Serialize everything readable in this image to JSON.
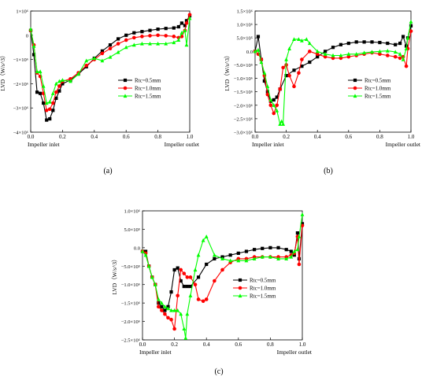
{
  "figure": {
    "panels": [
      {
        "label": "(a)"
      },
      {
        "label": "(b)"
      },
      {
        "label": "(c)"
      }
    ]
  },
  "series_styles": [
    {
      "name": "Rtc=0.5mm",
      "color": "#000000",
      "marker": "square"
    },
    {
      "name": "Rtc=1.0mm",
      "color": "#ff0000",
      "marker": "circle"
    },
    {
      "name": "Rtc=1.5mm",
      "color": "#00ff00",
      "marker": "triangle"
    }
  ],
  "chart_data": [
    {
      "type": "line",
      "panel": "(a)",
      "ylabel": "LVD（W/s^3）",
      "xlabel_left": "Impeller inlet",
      "xlabel_right": "Impeller outlet",
      "xlim": [
        0,
        1.0
      ],
      "ylim": [
        -4000000,
        1000000
      ],
      "xticks": [
        0.0,
        0.2,
        0.4,
        0.6,
        0.8,
        1.0
      ],
      "xtick_labels": [
        "0.0",
        "0.2",
        "0.4",
        "0.6",
        "0.8",
        "1.0"
      ],
      "yticks": [
        1000000,
        0,
        -1000000,
        -2000000,
        -3000000,
        -4000000
      ],
      "ytick_labels": [
        "1×10⁶",
        "0",
        "−1×10⁶",
        "−2×10⁶",
        "−3×10⁶",
        "−4×10⁶"
      ],
      "legend_position": "center-right",
      "series": [
        {
          "name": "Rtc=0.5mm",
          "x": [
            0.0,
            0.02,
            0.04,
            0.06,
            0.08,
            0.1,
            0.12,
            0.14,
            0.16,
            0.18,
            0.2,
            0.25,
            0.3,
            0.35,
            0.4,
            0.45,
            0.5,
            0.55,
            0.6,
            0.65,
            0.7,
            0.75,
            0.8,
            0.85,
            0.9,
            0.93,
            0.95,
            0.97,
            0.98,
            1.0
          ],
          "y": [
            200000,
            -800000,
            -2350000,
            -2400000,
            -2800000,
            -3500000,
            -3450000,
            -3100000,
            -2600000,
            -2300000,
            -2000000,
            -1850000,
            -1600000,
            -1300000,
            -950000,
            -650000,
            -400000,
            -150000,
            0,
            100000,
            150000,
            200000,
            250000,
            280000,
            300000,
            350000,
            500000,
            400000,
            600000,
            800000
          ]
        },
        {
          "name": "Rtc=1.0mm",
          "x": [
            0.0,
            0.02,
            0.04,
            0.06,
            0.08,
            0.1,
            0.12,
            0.14,
            0.16,
            0.18,
            0.2,
            0.25,
            0.3,
            0.35,
            0.4,
            0.45,
            0.5,
            0.55,
            0.6,
            0.65,
            0.7,
            0.75,
            0.8,
            0.85,
            0.9,
            0.93,
            0.95,
            0.97,
            0.98,
            1.0
          ],
          "y": [
            200000,
            -400000,
            -1550000,
            -1700000,
            -2400000,
            -3100000,
            -3050000,
            -2800000,
            -2350000,
            -2100000,
            -1900000,
            -1800000,
            -1550000,
            -1250000,
            -1000000,
            -750000,
            -550000,
            -350000,
            -200000,
            -100000,
            -50000,
            -20000,
            0,
            -20000,
            -50000,
            -100000,
            -50000,
            200000,
            500000,
            850000
          ]
        },
        {
          "name": "Rtc=1.5mm",
          "x": [
            0.0,
            0.02,
            0.04,
            0.06,
            0.08,
            0.1,
            0.12,
            0.14,
            0.16,
            0.18,
            0.2,
            0.25,
            0.3,
            0.35,
            0.4,
            0.45,
            0.5,
            0.55,
            0.6,
            0.65,
            0.7,
            0.75,
            0.8,
            0.85,
            0.9,
            0.93,
            0.95,
            0.97,
            0.98,
            1.0
          ],
          "y": [
            250000,
            -450000,
            -1500000,
            -1500000,
            -2100000,
            -2800000,
            -2750000,
            -2400000,
            -2000000,
            -1900000,
            -1850000,
            -1900000,
            -1600000,
            -1050000,
            -950000,
            -1050000,
            -900000,
            -700000,
            -500000,
            -400000,
            -350000,
            -350000,
            -350000,
            -350000,
            -300000,
            -200000,
            100000,
            200000,
            -400000,
            700000
          ]
        }
      ]
    },
    {
      "type": "line",
      "panel": "(b)",
      "ylabel": "LVD（W/s^3）",
      "xlabel_left": "Impeller inlet",
      "xlabel_right": "Impeller outlet",
      "xlim": [
        0,
        1.0
      ],
      "ylim": [
        -3000000,
        1500000
      ],
      "xticks": [
        0.0,
        0.2,
        0.4,
        0.6,
        0.8,
        1.0
      ],
      "xtick_labels": [
        "0.0",
        "0.2",
        "0.4",
        "0.6",
        "0.8",
        "1.0"
      ],
      "yticks": [
        1500000,
        1000000,
        500000,
        0,
        -500000,
        -1000000,
        -1500000,
        -2000000,
        -2500000,
        -3000000
      ],
      "ytick_labels": [
        "1.5×10⁶",
        "1.0×10⁶",
        "5.0×10⁵",
        "0.0",
        "−5.0×10⁵",
        "−1.0×10⁶",
        "−1.5×10⁶",
        "−2.0×10⁶",
        "−2.5×10⁶",
        "−3.0×10⁶"
      ],
      "legend_position": "center-right",
      "series": [
        {
          "name": "Rtc=0.5mm",
          "x": [
            0.0,
            0.02,
            0.04,
            0.06,
            0.08,
            0.1,
            0.12,
            0.14,
            0.16,
            0.2,
            0.25,
            0.3,
            0.35,
            0.4,
            0.45,
            0.5,
            0.55,
            0.6,
            0.65,
            0.7,
            0.75,
            0.8,
            0.85,
            0.9,
            0.93,
            0.95,
            0.97,
            0.98,
            1.0
          ],
          "y": [
            0,
            550000,
            -300000,
            -1100000,
            -1500000,
            -1850000,
            -1800000,
            -1700000,
            -1400000,
            -900000,
            -700000,
            -550000,
            -400000,
            -200000,
            0,
            150000,
            250000,
            300000,
            350000,
            350000,
            350000,
            330000,
            300000,
            250000,
            300000,
            550000,
            200000,
            500000,
            950000
          ]
        },
        {
          "name": "Rtc=1.0mm",
          "x": [
            0.0,
            0.02,
            0.04,
            0.06,
            0.08,
            0.1,
            0.12,
            0.14,
            0.16,
            0.18,
            0.2,
            0.22,
            0.25,
            0.28,
            0.3,
            0.35,
            0.4,
            0.45,
            0.5,
            0.55,
            0.6,
            0.65,
            0.7,
            0.75,
            0.8,
            0.85,
            0.9,
            0.93,
            0.95,
            0.97,
            0.98,
            1.0
          ],
          "y": [
            0,
            -100000,
            -300000,
            -900000,
            -1600000,
            -2000000,
            -2300000,
            -2000000,
            -1400000,
            -600000,
            -500000,
            -900000,
            -1300000,
            -800000,
            -300000,
            0,
            -100000,
            -200000,
            -250000,
            -250000,
            -200000,
            -150000,
            -100000,
            -50000,
            -100000,
            -150000,
            -200000,
            -250000,
            -200000,
            -550000,
            100000,
            750000
          ]
        },
        {
          "name": "Rtc=1.5mm",
          "x": [
            0.0,
            0.02,
            0.04,
            0.06,
            0.08,
            0.1,
            0.12,
            0.14,
            0.16,
            0.17,
            0.18,
            0.2,
            0.22,
            0.25,
            0.28,
            0.3,
            0.33,
            0.35,
            0.4,
            0.45,
            0.5,
            0.55,
            0.6,
            0.65,
            0.7,
            0.75,
            0.8,
            0.85,
            0.9,
            0.93,
            0.95,
            0.97,
            0.98,
            1.0
          ],
          "y": [
            0,
            50000,
            -400000,
            -800000,
            -1300000,
            -1800000,
            -2000000,
            -2200000,
            -2700000,
            -2600000,
            -2700000,
            -300000,
            100000,
            450000,
            450000,
            400000,
            450000,
            300000,
            0,
            -100000,
            -150000,
            -150000,
            -100000,
            -100000,
            -50000,
            -20000,
            0,
            20000,
            -20000,
            -100000,
            -300000,
            100000,
            500000,
            1100000
          ]
        }
      ]
    },
    {
      "type": "line",
      "panel": "(c)",
      "ylabel": "LVD（W/s^3）",
      "xlabel_left": "Impeller inlet",
      "xlabel_right": "Impeller outlet",
      "xlim": [
        0,
        1.0
      ],
      "ylim": [
        -2500000,
        1000000
      ],
      "xticks": [
        0.0,
        0.2,
        0.4,
        0.6,
        0.8,
        1.0
      ],
      "xtick_labels": [
        "0.0",
        "0.2",
        "0.4",
        "0.6",
        "0.8",
        "1.0"
      ],
      "yticks": [
        1000000,
        500000,
        0,
        -500000,
        -1000000,
        -1500000,
        -2000000,
        -2500000
      ],
      "ytick_labels": [
        "1.0×10⁶",
        "5.0×10⁵",
        "0.0",
        "−5.0×10⁵",
        "−1.0×10⁶",
        "−1.5×10⁶",
        "−2.0×10⁶",
        "−2.5×10⁶"
      ],
      "legend_position": "center-right",
      "series": [
        {
          "name": "Rtc=0.5mm",
          "x": [
            0.0,
            0.02,
            0.04,
            0.06,
            0.08,
            0.1,
            0.12,
            0.14,
            0.16,
            0.18,
            0.2,
            0.22,
            0.24,
            0.26,
            0.28,
            0.3,
            0.35,
            0.4,
            0.45,
            0.5,
            0.55,
            0.6,
            0.65,
            0.7,
            0.75,
            0.8,
            0.85,
            0.9,
            0.93,
            0.95,
            0.97,
            0.98,
            1.0
          ],
          "y": [
            -100000,
            -100000,
            -500000,
            -800000,
            -1000000,
            -1500000,
            -1600000,
            -1700000,
            -1600000,
            -1200000,
            -600000,
            -550000,
            -900000,
            -1050000,
            -1050000,
            -1050000,
            -800000,
            -450000,
            -300000,
            -250000,
            -200000,
            -150000,
            -100000,
            -50000,
            -20000,
            0,
            0,
            -50000,
            -100000,
            -200000,
            400000,
            -300000,
            650000
          ]
        },
        {
          "name": "Rtc=1.0mm",
          "x": [
            0.0,
            0.02,
            0.04,
            0.06,
            0.08,
            0.1,
            0.12,
            0.14,
            0.16,
            0.18,
            0.2,
            0.22,
            0.24,
            0.26,
            0.28,
            0.3,
            0.33,
            0.35,
            0.38,
            0.4,
            0.45,
            0.5,
            0.55,
            0.6,
            0.65,
            0.7,
            0.75,
            0.8,
            0.85,
            0.9,
            0.93,
            0.95,
            0.97,
            0.98,
            1.0
          ],
          "y": [
            -100000,
            -150000,
            -500000,
            -800000,
            -1000000,
            -1600000,
            -1700000,
            -1800000,
            -1900000,
            -1950000,
            -2200000,
            -1300000,
            -600000,
            -700000,
            -800000,
            -800000,
            -1000000,
            -1400000,
            -1450000,
            -1400000,
            -900000,
            -600000,
            -400000,
            -300000,
            -300000,
            -250000,
            -250000,
            -250000,
            -250000,
            -250000,
            -200000,
            -150000,
            300000,
            -450000,
            600000
          ]
        },
        {
          "name": "Rtc=1.5mm",
          "x": [
            0.0,
            0.02,
            0.04,
            0.06,
            0.08,
            0.1,
            0.12,
            0.14,
            0.16,
            0.18,
            0.2,
            0.22,
            0.24,
            0.26,
            0.27,
            0.28,
            0.3,
            0.33,
            0.35,
            0.38,
            0.4,
            0.45,
            0.5,
            0.55,
            0.6,
            0.65,
            0.7,
            0.75,
            0.8,
            0.85,
            0.9,
            0.93,
            0.95,
            0.97,
            0.98,
            1.0
          ],
          "y": [
            -100000,
            -200000,
            -500000,
            -800000,
            -1000000,
            -1400000,
            -1500000,
            -1600000,
            -1650000,
            -1700000,
            -1700000,
            -1700000,
            -1800000,
            -2200000,
            -2450000,
            -1800000,
            -1300000,
            -600000,
            -200000,
            200000,
            300000,
            -200000,
            -300000,
            -350000,
            -350000,
            -350000,
            -300000,
            -250000,
            -250000,
            -300000,
            -300000,
            -250000,
            -100000,
            -50000,
            300000,
            900000
          ]
        }
      ]
    }
  ]
}
